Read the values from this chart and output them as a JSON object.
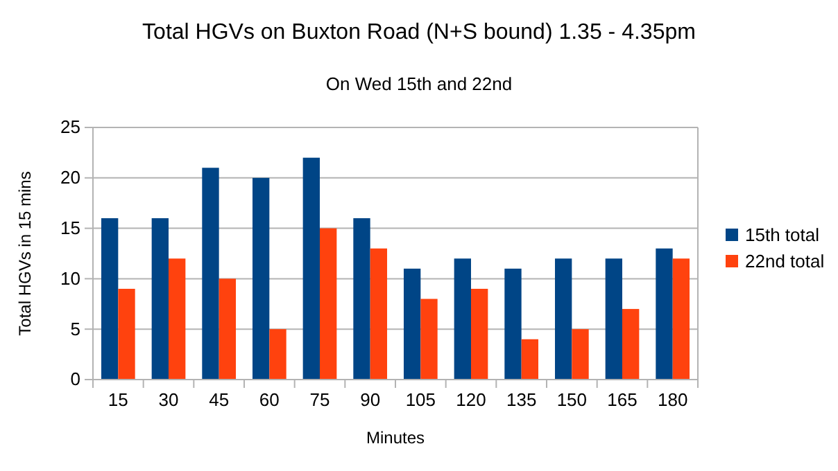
{
  "chart_data": {
    "type": "bar",
    "title": "Total HGVs on Buxton Road (N+S bound) 1.35 - 4.35pm",
    "subtitle": "On  Wed 15th and 22nd",
    "xlabel": "Minutes",
    "ylabel": "Total HGVs in 15 mins",
    "categories": [
      "15",
      "30",
      "45",
      "60",
      "75",
      "90",
      "105",
      "120",
      "135",
      "150",
      "165",
      "180"
    ],
    "series": [
      {
        "name": "15th total",
        "color": "#004586",
        "values": [
          16,
          16,
          21,
          20,
          22,
          16,
          11,
          12,
          11,
          12,
          12,
          13
        ]
      },
      {
        "name": "22nd total",
        "color": "#ff420e",
        "values": [
          9,
          12,
          10,
          5,
          15,
          13,
          8,
          9,
          4,
          5,
          7,
          12
        ]
      }
    ],
    "ylim": [
      0,
      25
    ],
    "yticks": [
      0,
      5,
      10,
      15,
      20,
      25
    ],
    "grid": "y",
    "legend": "right"
  }
}
